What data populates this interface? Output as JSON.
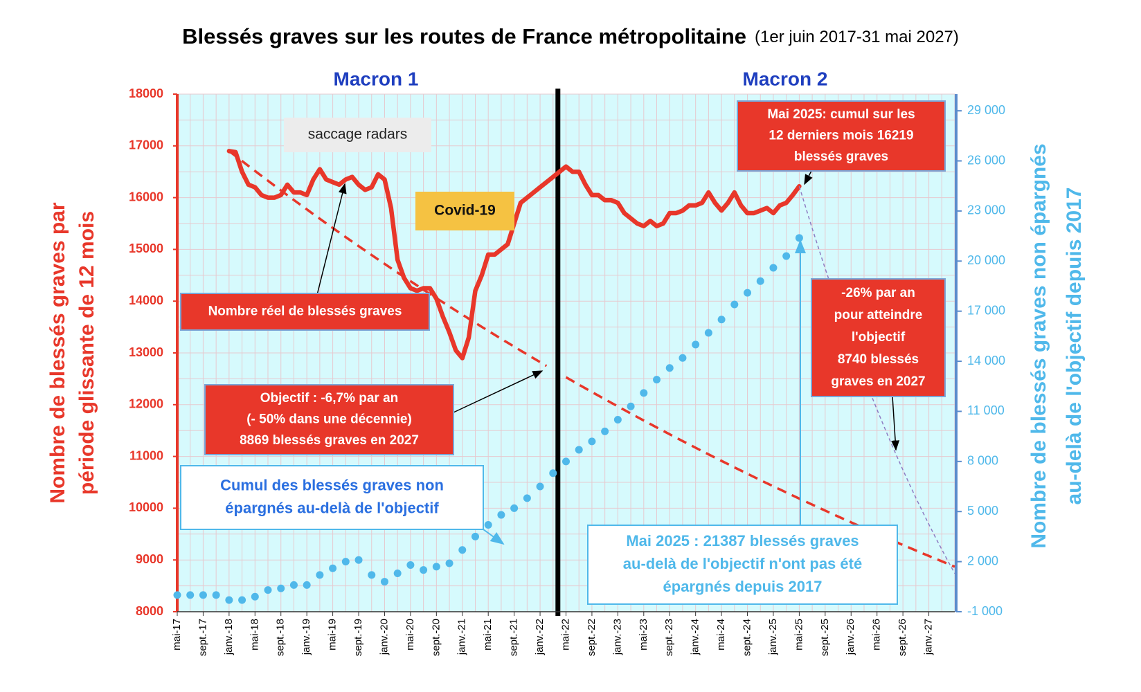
{
  "chart_data": {
    "type": "line",
    "title": "Blessés graves sur les routes de France métropolitaine",
    "subtitle": "(1er juin 2017-31 mai 2027)",
    "ylabel": [
      "Nombre de blessés graves par",
      "période glissante de 12 mois"
    ],
    "y2label": [
      "Nombre de blessés graves non épargnés",
      "au-delà de l'objectif depuis 2017"
    ],
    "period_labels": [
      "Macron 1",
      "Macron 2"
    ],
    "categories": [
      "mai-17",
      null,
      null,
      null,
      "sept.-17",
      null,
      null,
      null,
      "janv.-18",
      null,
      null,
      null,
      "mai-18",
      null,
      null,
      null,
      "sept.-18",
      null,
      null,
      null,
      "janv.-19",
      null,
      null,
      null,
      "mai-19",
      null,
      null,
      null,
      "sept.-19",
      null,
      null,
      null,
      "janv.-20",
      null,
      null,
      null,
      "mai-20",
      null,
      null,
      null,
      "sept.-20",
      null,
      null,
      null,
      "janv.-21",
      null,
      null,
      null,
      "mai-21",
      null,
      null,
      null,
      "sept.-21",
      null,
      null,
      null,
      "janv.-22",
      null,
      null,
      null,
      "mai-22",
      null,
      null,
      null,
      "sept.-22",
      null,
      null,
      null,
      "janv.-23",
      null,
      null,
      null,
      "mai-23",
      null,
      null,
      null,
      "sept.-23",
      null,
      null,
      null,
      "janv.-24",
      null,
      null,
      null,
      "mai-24",
      null,
      null,
      null,
      "sept.-24",
      null,
      null,
      null,
      "janv.-25",
      null,
      null,
      null,
      "mai-25",
      null,
      null,
      null,
      "sept.-25",
      null,
      null,
      null,
      "janv.-26",
      null,
      null,
      null,
      "mai-26",
      null,
      null,
      null,
      "sept.-26",
      null,
      null,
      null,
      "janv.-27",
      null,
      null,
      null,
      null
    ],
    "series": [
      {
        "style": "solid",
        "color": "#e8372a",
        "values": [
          null,
          null,
          null,
          null,
          null,
          null,
          null,
          null,
          16900,
          16880,
          16500,
          16250,
          16200,
          16050,
          16000,
          16000,
          16050,
          16250,
          16100,
          16100,
          16050,
          16350,
          16550,
          16350,
          16300,
          16250,
          16350,
          16400,
          16250,
          16150,
          16200,
          16450,
          16350,
          15800,
          14800,
          14450,
          14250,
          14200,
          14250,
          14250,
          14050,
          13700,
          13400,
          13050,
          12900,
          13300,
          14200,
          14500,
          14900,
          14900,
          15000,
          15100,
          15500,
          15900,
          16000,
          16100,
          16200,
          16300,
          16400,
          16500,
          16600,
          16500,
          16500,
          16250,
          16050,
          16050,
          15950,
          15950,
          15900,
          15700,
          15600,
          15500,
          15450,
          15550,
          15450,
          15500,
          15700,
          15700,
          15750,
          15850,
          15850,
          15900,
          16100,
          15900,
          15750,
          15900,
          16100,
          15850,
          15700,
          15700,
          15750,
          15800,
          15700,
          15850,
          15900,
          16050,
          16219,
          null,
          null,
          null,
          null,
          null,
          null,
          null,
          null,
          null,
          null,
          null,
          null,
          null,
          null,
          null,
          null,
          null,
          null,
          null,
          null,
          null,
          null,
          null,
          null
        ]
      },
      {
        "style": "dashed",
        "color": "#e8372a",
        "values": [
          null,
          null,
          null,
          null,
          null,
          null,
          null,
          null,
          16900,
          16803,
          16707,
          16611,
          16516,
          16421,
          16327,
          16233,
          16140,
          16047,
          15955,
          15864,
          15773,
          15682,
          15592,
          15503,
          15414,
          15325,
          15237,
          15150,
          15063,
          14977,
          14891,
          14806,
          14721,
          14636,
          14552,
          14469,
          14386,
          14303,
          14221,
          14140,
          14059,
          13978,
          13898,
          13818,
          13739,
          13660,
          13581,
          13504,
          13426,
          13349,
          13272,
          13196,
          13121,
          13045,
          12970,
          12896,
          12822,
          12748,
          null,
          null,
          12530,
          12458,
          12387,
          12316,
          12245,
          12175,
          12105,
          12036,
          11967,
          11898,
          11830,
          11762,
          11694,
          11627,
          11560,
          11494,
          11428,
          11362,
          11297,
          11232,
          11168,
          11104,
          11040,
          10977,
          10914,
          10851,
          10789,
          10727,
          10666,
          10604,
          10543,
          10483,
          10423,
          10363,
          10304,
          10245,
          10186,
          10127,
          10069,
          10011,
          9954,
          9897,
          9840,
          9783,
          9727,
          9671,
          9616,
          9561,
          9506,
          9451,
          9397,
          9343,
          9289,
          9236,
          9183,
          9130,
          9078,
          9026,
          8974,
          8922,
          8869
        ]
      },
      {
        "style": "thin-dashed",
        "color": "#8e7cc3",
        "values": [
          null,
          null,
          null,
          null,
          null,
          null,
          null,
          null,
          null,
          null,
          null,
          null,
          null,
          null,
          null,
          null,
          null,
          null,
          null,
          null,
          null,
          null,
          null,
          null,
          null,
          null,
          null,
          null,
          null,
          null,
          null,
          null,
          null,
          null,
          null,
          null,
          null,
          null,
          null,
          null,
          null,
          null,
          null,
          null,
          null,
          null,
          null,
          null,
          null,
          null,
          null,
          null,
          null,
          null,
          null,
          null,
          null,
          null,
          null,
          null,
          null,
          null,
          null,
          null,
          null,
          null,
          null,
          null,
          null,
          null,
          null,
          null,
          null,
          null,
          null,
          null,
          null,
          null,
          null,
          null,
          null,
          null,
          null,
          null,
          null,
          null,
          null,
          null,
          null,
          null,
          null,
          null,
          null,
          null,
          null,
          null,
          16219,
          15807,
          15405,
          15013,
          14631,
          14259,
          13896,
          13543,
          13198,
          12863,
          12535,
          12216,
          11906,
          11603,
          11308,
          11020,
          10740,
          10467,
          10200,
          9941,
          9688,
          9442,
          9202,
          8968,
          8740
        ]
      },
      {
        "style": "dots",
        "axis": "y2",
        "color": "#4fb8ea",
        "values": [
          0,
          null,
          0,
          null,
          0,
          null,
          0,
          null,
          -300,
          null,
          -300,
          null,
          -100,
          null,
          300,
          null,
          400,
          null,
          600,
          null,
          600,
          null,
          1200,
          null,
          1600,
          null,
          2000,
          null,
          2100,
          null,
          1200,
          null,
          800,
          null,
          1300,
          null,
          1800,
          null,
          1500,
          null,
          1700,
          null,
          1900,
          null,
          2700,
          null,
          3500,
          null,
          4200,
          null,
          4800,
          null,
          5200,
          null,
          5800,
          null,
          6500,
          null,
          7300,
          null,
          8000,
          null,
          8700,
          null,
          9200,
          null,
          9800,
          null,
          10500,
          null,
          11300,
          null,
          12100,
          null,
          12900,
          null,
          13600,
          null,
          14200,
          null,
          15000,
          null,
          15700,
          null,
          16500,
          null,
          17400,
          null,
          18100,
          null,
          18800,
          null,
          19600,
          null,
          20300,
          null,
          21387,
          null,
          null,
          null,
          null,
          null,
          null,
          null,
          null,
          null,
          null,
          null,
          null,
          null,
          null,
          null,
          null,
          null,
          null,
          null,
          null,
          null,
          null,
          null,
          null
        ]
      }
    ],
    "ylim": [
      8000,
      18000
    ],
    "yticks": [
      8000,
      9000,
      10000,
      11000,
      12000,
      13000,
      14000,
      15000,
      16000,
      17000,
      18000
    ],
    "y2lim": [
      -1000,
      30000
    ],
    "y2ticks": [
      {
        "value": -1000,
        "label": "-1 000"
      },
      {
        "value": 2000,
        "label": "2 000"
      },
      {
        "value": 5000,
        "label": "5 000"
      },
      {
        "value": 8000,
        "label": "8 000"
      },
      {
        "value": 11000,
        "label": "11 000"
      },
      {
        "value": 14000,
        "label": "14 000"
      },
      {
        "value": 17000,
        "label": "17 000"
      },
      {
        "value": 20000,
        "label": "20 000"
      },
      {
        "value": 23000,
        "label": "23 000"
      },
      {
        "value": 26000,
        "label": "26 000"
      },
      {
        "value": 29000,
        "label": "29 000"
      }
    ],
    "grid": true,
    "annotations": [
      {
        "lines": [
          "saccage radars"
        ]
      },
      {
        "lines": [
          "Covid-19"
        ]
      },
      {
        "lines": [
          "Nombre réel de blessés graves"
        ]
      },
      {
        "lines": [
          "Objectif : -6,7% par an",
          "(- 50% dans une décennie)",
          "8869 blessés graves en 2027"
        ]
      },
      {
        "lines": [
          "Cumul des blessés graves non",
          "épargnés  au-delà de l'objectif"
        ]
      },
      {
        "lines": [
          "Mai 2025: cumul sur les",
          "12 derniers mois 16219",
          "blessés graves"
        ]
      },
      {
        "lines": [
          "-26% par an",
          "pour atteindre",
          "l'objectif",
          "8740 blessés",
          "graves en 2027"
        ]
      },
      {
        "lines": [
          "Mai 2025 : 21387 blessés  graves",
          "au-delà de l'objectif n'ont pas été",
          "épargnés depuis 2017"
        ]
      }
    ]
  }
}
